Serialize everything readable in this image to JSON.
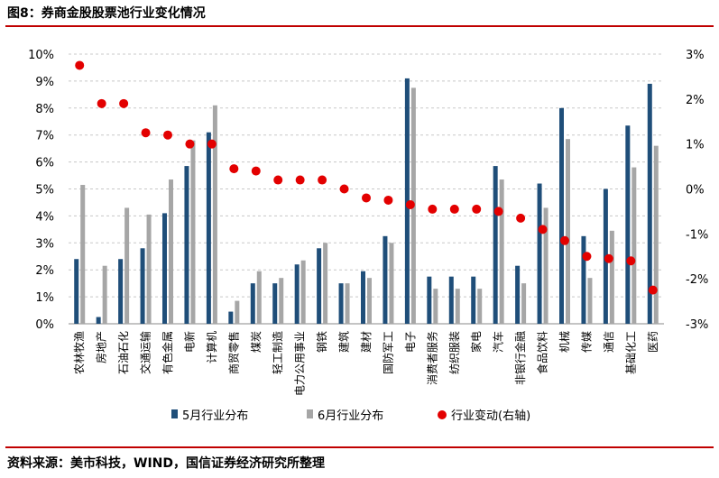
{
  "title": "图8：券商金股股票池行业变化情况",
  "source": "资料来源：美市科技，WIND，国信证券经济研究所整理",
  "colors": {
    "may": "#1f4e79",
    "june": "#a6a6a6",
    "change": "#e30000",
    "rule": "#c00000"
  },
  "chart_data": {
    "type": "bar",
    "categories": [
      "农林牧渔",
      "房地产",
      "石油石化",
      "交通运输",
      "有色金属",
      "电新",
      "计算机",
      "商贸零售",
      "煤炭",
      "轻工制造",
      "电力公用事业",
      "钢铁",
      "建筑",
      "建材",
      "国防军工",
      "电子",
      "消费者服务",
      "纺织服装",
      "家电",
      "汽车",
      "非银行金融",
      "食品饮料",
      "机械",
      "传媒",
      "通信",
      "基础化工",
      "医药"
    ],
    "series": [
      {
        "name": "5月行业分布",
        "axis": "left",
        "values": [
          2.4,
          0.25,
          2.4,
          2.8,
          4.1,
          5.85,
          7.1,
          0.45,
          1.5,
          1.5,
          2.2,
          2.8,
          1.5,
          1.95,
          3.25,
          9.1,
          1.75,
          1.75,
          1.75,
          5.85,
          2.15,
          5.2,
          8.0,
          3.25,
          5.0,
          7.35,
          8.9
        ]
      },
      {
        "name": "6月行业分布",
        "axis": "left",
        "values": [
          5.15,
          2.15,
          4.3,
          4.05,
          5.35,
          6.8,
          8.1,
          0.85,
          1.95,
          1.7,
          2.35,
          3.0,
          1.5,
          1.7,
          3.0,
          8.75,
          1.3,
          1.3,
          1.3,
          5.35,
          1.5,
          4.3,
          6.85,
          1.7,
          3.45,
          5.8,
          6.6
        ]
      },
      {
        "name": "行业变动(右轴)",
        "axis": "right",
        "type": "scatter",
        "values": [
          2.75,
          1.9,
          1.9,
          1.25,
          1.2,
          1.0,
          1.0,
          0.45,
          0.4,
          0.2,
          0.2,
          0.2,
          0.0,
          -0.2,
          -0.25,
          -0.35,
          -0.45,
          -0.45,
          -0.45,
          -0.5,
          -0.65,
          -0.9,
          -1.15,
          -1.5,
          -1.55,
          -1.6,
          -2.25
        ]
      }
    ],
    "ylim_left": [
      0,
      10
    ],
    "ylim_right": [
      -3,
      3
    ],
    "yticks_left": [
      "0%",
      "1%",
      "2%",
      "3%",
      "4%",
      "5%",
      "6%",
      "7%",
      "8%",
      "9%",
      "10%"
    ],
    "yticks_right": [
      "-3%",
      "-2%",
      "-1%",
      "0%",
      "1%",
      "2%",
      "3%"
    ],
    "grid": "horizontal-dashed",
    "legend": "bottom"
  }
}
